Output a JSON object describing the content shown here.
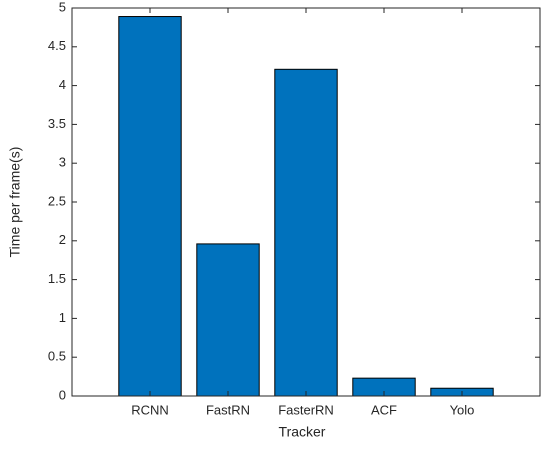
{
  "chart_data": {
    "type": "bar",
    "xlabel": "Tracker",
    "ylabel": "Time per frame(s)",
    "categories": [
      "RCNN",
      "FastRN",
      "FasterRN",
      "ACF",
      "Yolo"
    ],
    "values": [
      4.89,
      1.96,
      4.21,
      0.23,
      0.1
    ],
    "color": "#0072bd",
    "ylim": [
      0,
      5
    ],
    "yticks": [
      0,
      0.5,
      1,
      1.5,
      2,
      2.5,
      3,
      3.5,
      4,
      4.5,
      5
    ]
  }
}
